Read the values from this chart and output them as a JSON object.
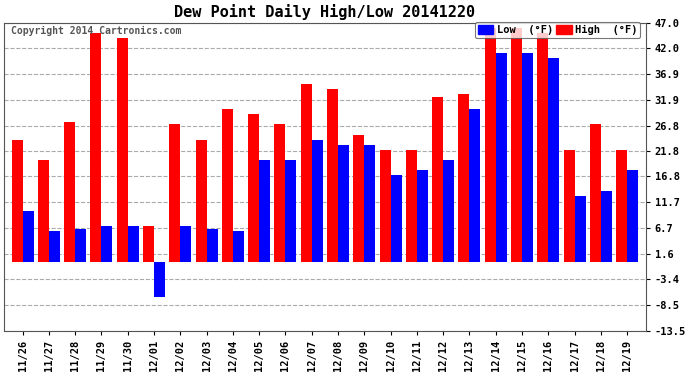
{
  "title": "Dew Point Daily High/Low 20141220",
  "copyright": "Copyright 2014 Cartronics.com",
  "legend_low": "Low  (°F)",
  "legend_high": "High  (°F)",
  "dates": [
    "11/26",
    "11/27",
    "11/28",
    "11/29",
    "11/30",
    "12/01",
    "12/02",
    "12/03",
    "12/04",
    "12/05",
    "12/06",
    "12/07",
    "12/08",
    "12/09",
    "12/10",
    "12/11",
    "12/12",
    "12/13",
    "12/14",
    "12/15",
    "12/16",
    "12/17",
    "12/18",
    "12/19"
  ],
  "low": [
    10.0,
    6.0,
    6.5,
    7.0,
    7.0,
    -7.0,
    7.0,
    6.5,
    6.0,
    20.0,
    20.0,
    24.0,
    23.0,
    23.0,
    17.0,
    18.0,
    20.0,
    30.0,
    41.0,
    41.0,
    40.0,
    13.0,
    14.0,
    18.0
  ],
  "high": [
    24.0,
    20.0,
    27.5,
    45.0,
    44.0,
    7.0,
    27.0,
    24.0,
    30.0,
    29.0,
    27.0,
    35.0,
    34.0,
    25.0,
    22.0,
    22.0,
    32.5,
    33.0,
    46.0,
    46.0,
    45.0,
    22.0,
    27.0,
    22.0
  ],
  "ylim": [
    -13.5,
    47.0
  ],
  "yticks": [
    -13.5,
    -8.5,
    -3.4,
    1.6,
    6.7,
    11.7,
    16.8,
    21.8,
    26.8,
    31.9,
    36.9,
    42.0,
    47.0
  ],
  "bar_width": 0.42,
  "low_color": "#0000ff",
  "high_color": "#ff0000",
  "bg_color": "#ffffff",
  "grid_color": "#aaaaaa",
  "title_fontsize": 11,
  "tick_fontsize": 7.5,
  "legend_fontsize": 7.5
}
